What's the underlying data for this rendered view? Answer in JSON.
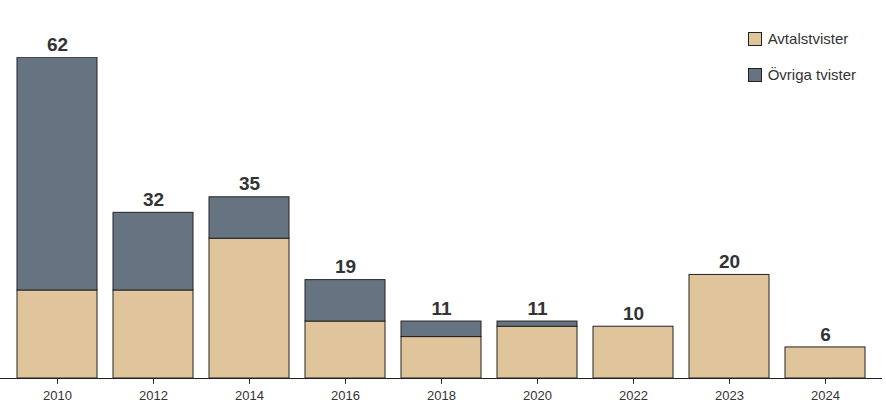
{
  "chart_data": {
    "type": "bar",
    "stacked": true,
    "categories": [
      "2010",
      "2012",
      "2014",
      "2016",
      "2018",
      "2020",
      "2022",
      "2023",
      "2024"
    ],
    "series": [
      {
        "name": "Avtalstvister",
        "color": "#e0c49c",
        "values": [
          17,
          17,
          27,
          11,
          8,
          10,
          10,
          20,
          6
        ]
      },
      {
        "name": "Övriga tvister",
        "color": "#667482",
        "values": [
          45,
          15,
          8,
          8,
          3,
          1,
          0,
          0,
          0
        ]
      }
    ],
    "totals": [
      62,
      32,
      35,
      19,
      11,
      11,
      10,
      20,
      6
    ],
    "ylim": [
      0,
      62
    ],
    "tick_labels": "x",
    "legend": "top-right"
  }
}
